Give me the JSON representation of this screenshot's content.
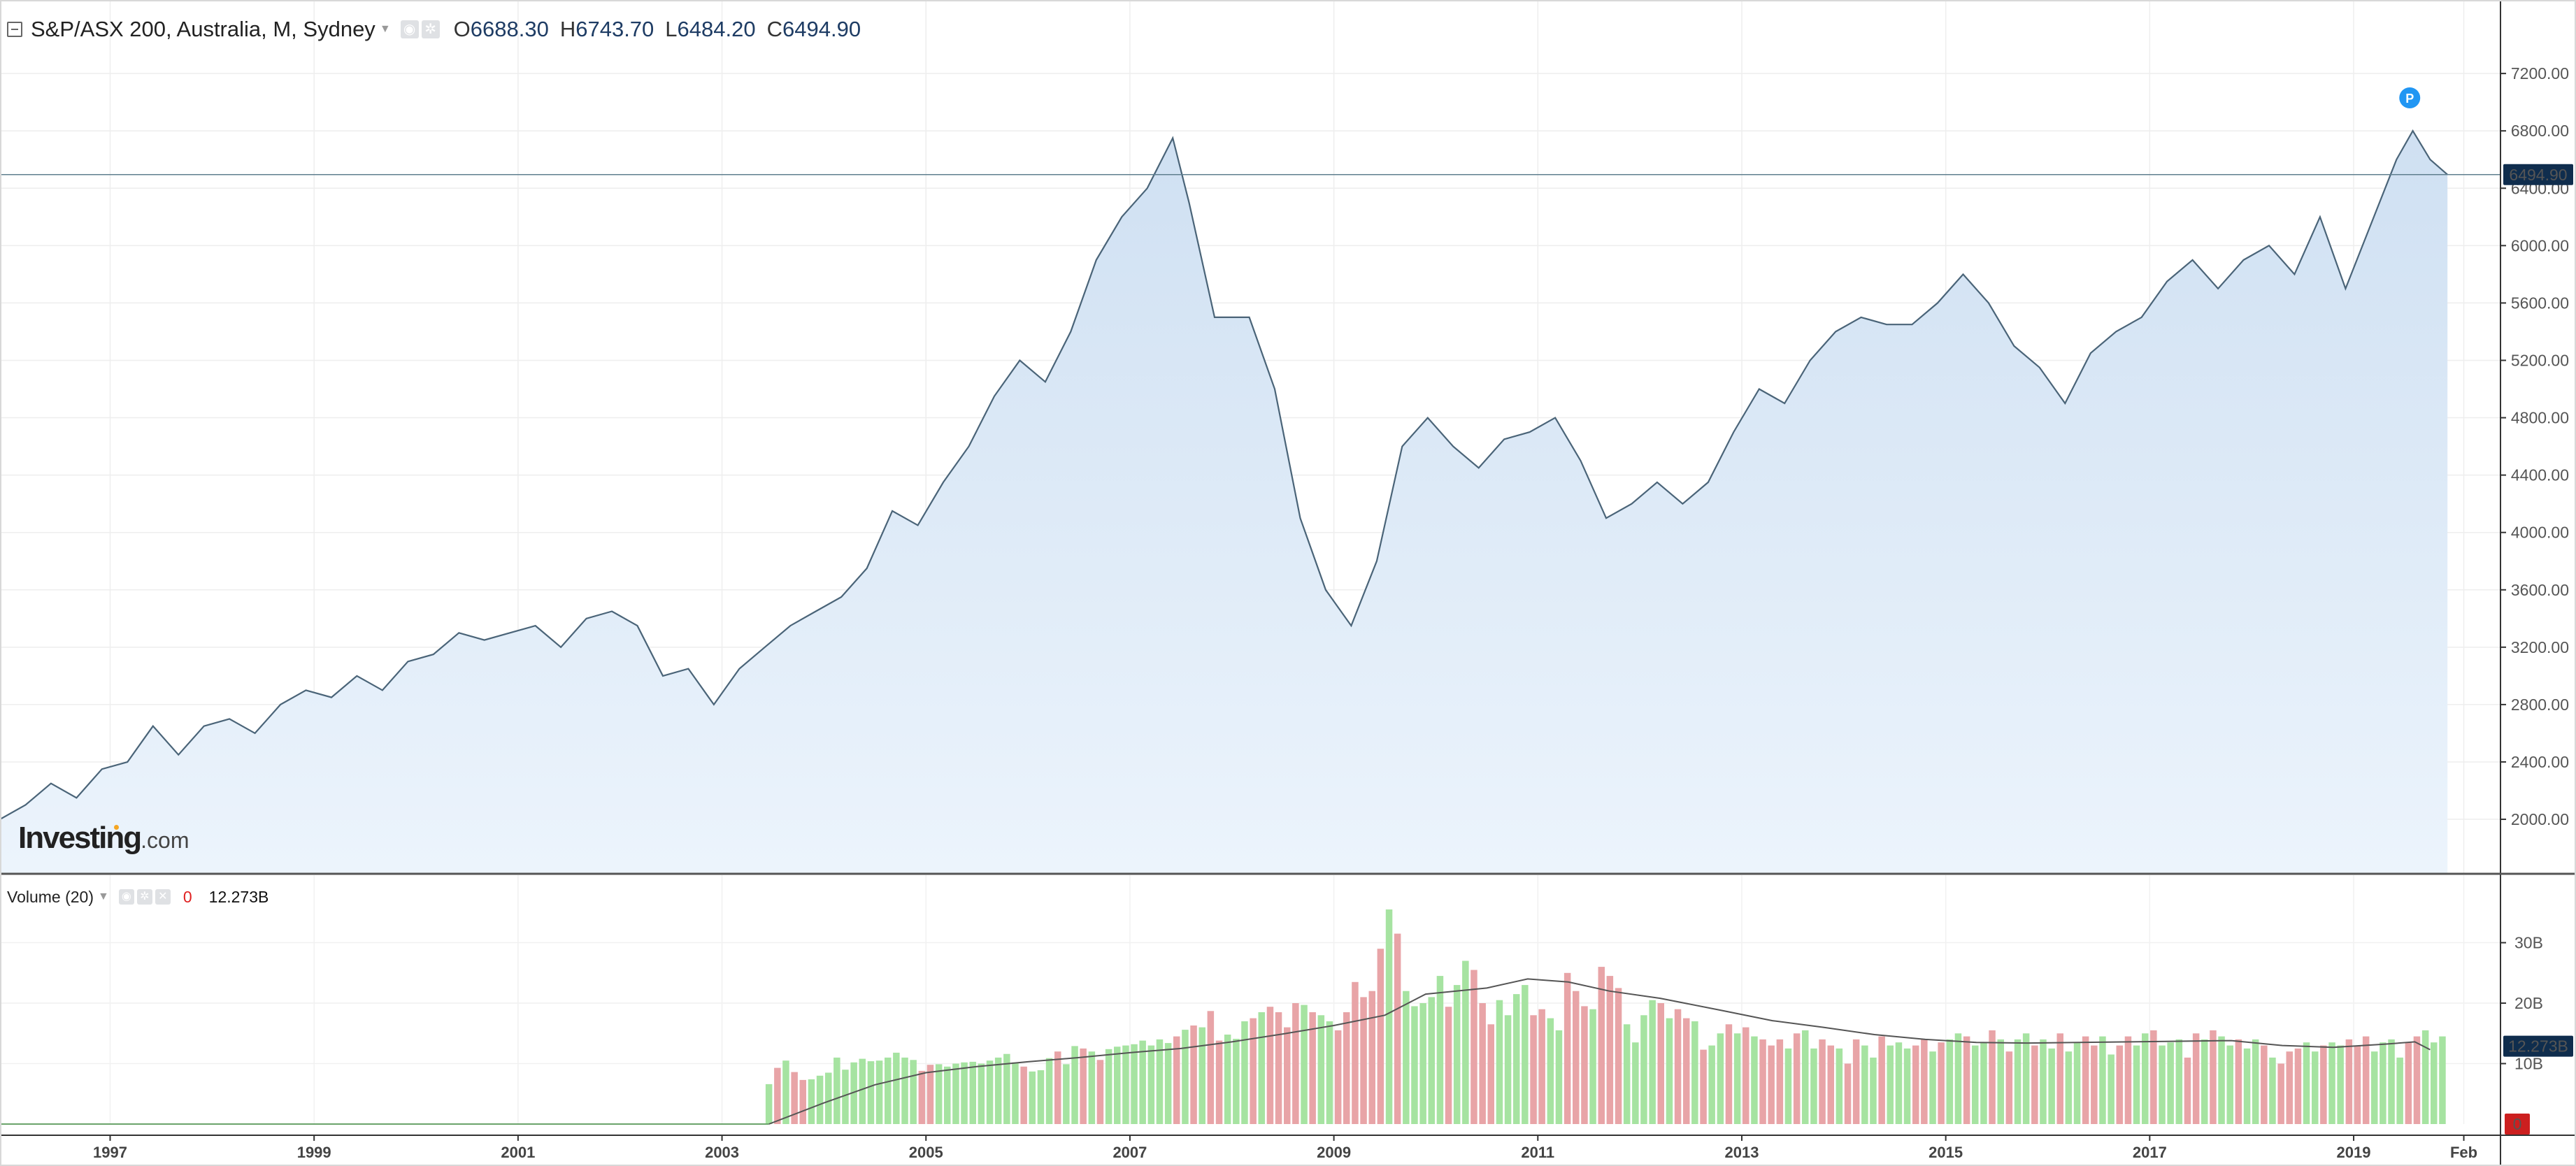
{
  "header": {
    "title": "S&P/ASX 200, Australia, M, Sydney",
    "ohlc": [
      {
        "key": "O",
        "value": "6688.30"
      },
      {
        "key": "H",
        "value": "6743.70"
      },
      {
        "key": "L",
        "value": "6484.20"
      },
      {
        "key": "C",
        "value": "6494.90"
      }
    ]
  },
  "volume_panel": {
    "title": "Volume (20)",
    "value_a": "0",
    "value_b": "12.273B"
  },
  "price_badge": "6494.90",
  "volume_badge": "12.273B",
  "volume_zero_badge": "0",
  "marker_label": "P",
  "logo": {
    "brand": "Investing",
    "suffix": ".com"
  },
  "colors": {
    "line": "#4a6478",
    "area_top": "#cfe0f2",
    "area_bottom": "#ecf4fc",
    "up_bar": "#a6e3a1",
    "down_bar": "#e8a4a7",
    "ma_line": "#555555",
    "badge_bg": "#0f2d4d",
    "zero_badge_bg": "#cc1f1f",
    "marker": "#2196f3"
  },
  "chart_data": [
    {
      "type": "area",
      "title": "S&P/ASX 200, Australia, M, Sydney",
      "y_axis_side": "right",
      "ylim": [
        1620,
        7420
      ],
      "y_ticks": [
        "2000.00",
        "2400.00",
        "2800.00",
        "3200.00",
        "3600.00",
        "4000.00",
        "4400.00",
        "4800.00",
        "5200.00",
        "5600.00",
        "6000.00",
        "6400.00",
        "6800.00",
        "7200.00"
      ],
      "x_range": [
        1995.92,
        2020.33
      ],
      "x_ticks": [
        {
          "x": 1997,
          "label": "1997"
        },
        {
          "x": 1999,
          "label": "1999"
        },
        {
          "x": 2001,
          "label": "2001"
        },
        {
          "x": 2003,
          "label": "2003"
        },
        {
          "x": 2005,
          "label": "2005"
        },
        {
          "x": 2007,
          "label": "2007"
        },
        {
          "x": 2009,
          "label": "2009"
        },
        {
          "x": 2011,
          "label": "2011"
        },
        {
          "x": 2013,
          "label": "2013"
        },
        {
          "x": 2015,
          "label": "2015"
        },
        {
          "x": 2017,
          "label": "2017"
        },
        {
          "x": 2019,
          "label": "2019"
        },
        {
          "x": 2020.08,
          "label": "Feb"
        }
      ],
      "last_close": 6494.9,
      "marker": {
        "x": 2019.55,
        "y": 7030,
        "label": "P"
      },
      "series": [
        {
          "x": [
            1995.92,
            1996.17,
            1996.42,
            1996.67,
            1996.92,
            1997.17,
            1997.42,
            1997.67,
            1997.92,
            1998.17,
            1998.42,
            1998.67,
            1998.92,
            1999.17,
            1999.42,
            1999.67,
            1999.92,
            2000.17,
            2000.42,
            2000.67,
            2000.92,
            2001.17,
            2001.42,
            2001.67,
            2001.92,
            2002.17,
            2002.42,
            2002.67,
            2002.92,
            2003.17,
            2003.42,
            2003.67,
            2003.92,
            2004.17,
            2004.42,
            2004.67,
            2004.92,
            2005.17,
            2005.42,
            2005.67,
            2005.92,
            2006.17,
            2006.42,
            2006.67,
            2006.92,
            2007.17,
            2007.42,
            2007.58,
            2007.83,
            2008.17,
            2008.42,
            2008.67,
            2008.92,
            2009.17,
            2009.42,
            2009.67,
            2009.92,
            2010.17,
            2010.42,
            2010.67,
            2010.92,
            2011.17,
            2011.42,
            2011.67,
            2011.92,
            2012.17,
            2012.42,
            2012.67,
            2012.92,
            2013.17,
            2013.42,
            2013.67,
            2013.92,
            2014.17,
            2014.42,
            2014.67,
            2014.92,
            2015.17,
            2015.42,
            2015.67,
            2015.92,
            2016.17,
            2016.42,
            2016.67,
            2016.92,
            2017.17,
            2017.42,
            2017.67,
            2017.92,
            2018.17,
            2018.42,
            2018.67,
            2018.92,
            2019.17,
            2019.42,
            2019.58,
            2019.75,
            2019.92
          ],
          "y": [
            2000,
            2100,
            2250,
            2150,
            2350,
            2400,
            2650,
            2450,
            2650,
            2700,
            2600,
            2800,
            2900,
            2850,
            3000,
            2900,
            3100,
            3150,
            3300,
            3250,
            3300,
            3350,
            3200,
            3400,
            3450,
            3350,
            3000,
            3050,
            2800,
            3050,
            3200,
            3350,
            3450,
            3550,
            3750,
            4150,
            4050,
            4350,
            4600,
            4950,
            5200,
            5050,
            5400,
            5900,
            6200,
            6400,
            6750,
            6300,
            5500,
            5500,
            5000,
            4100,
            3600,
            3350,
            3800,
            4600,
            4800,
            4600,
            4450,
            4650,
            4700,
            4800,
            4500,
            4100,
            4200,
            4350,
            4200,
            4350,
            4700,
            5000,
            4900,
            5200,
            5400,
            5500,
            5450,
            5450,
            5600,
            5800,
            5600,
            5300,
            5150,
            4900,
            5250,
            5400,
            5500,
            5750,
            5900,
            5700,
            5900,
            6000,
            5800,
            6200,
            5700,
            6150,
            6600,
            6800,
            6600,
            6495
          ]
        }
      ]
    },
    {
      "type": "bar",
      "title": "Volume (20)",
      "y_axis_side": "right",
      "ylim": [
        0,
        37
      ],
      "y_unit": "B",
      "y_ticks": [
        {
          "v": 10,
          "label": "10B"
        },
        {
          "v": 20,
          "label": "20B"
        },
        {
          "v": 30,
          "label": "30B"
        }
      ],
      "series": [
        {
          "name": "Volume",
          "x_start": 2003.46,
          "x_step": 0.0833,
          "values": [
            6.6,
            9.3,
            10.5,
            8.6,
            7.3,
            7.4,
            8.0,
            8.5,
            11.0,
            9.0,
            10.2,
            10.8,
            10.4,
            10.5,
            11.0,
            11.8,
            11.0,
            10.6,
            8.8,
            9.8,
            9.9,
            9.5,
            10.0,
            10.2,
            10.3,
            10.0,
            10.5,
            11.0,
            11.6,
            10.2,
            9.5,
            8.7,
            8.9,
            10.9,
            12.0,
            9.9,
            12.9,
            12.5,
            12.0,
            10.6,
            12.4,
            12.8,
            13.0,
            13.2,
            13.8,
            13.0,
            14.0,
            13.4,
            14.5,
            15.6,
            16.3,
            16.0,
            18.7,
            13.8,
            14.8,
            14.1,
            17.0,
            17.5,
            18.5,
            19.4,
            18.5,
            16.0,
            20.0,
            19.7,
            18.5,
            18.0,
            17.0,
            15.5,
            18.5,
            23.5,
            21.0,
            22.0,
            29.0,
            35.5,
            31.5,
            22.0,
            19.5,
            20.0,
            21.0,
            24.5,
            19.4,
            23.0,
            27.0,
            25.5,
            20.0,
            16.5,
            20.5,
            18.0,
            21.5,
            23.0,
            18.0,
            19.0,
            17.5,
            15.5,
            25.0,
            22.0,
            19.5,
            19.0,
            26.0,
            24.5,
            22.5,
            16.5,
            13.5,
            18.0,
            20.5,
            20.0,
            17.5,
            19.0,
            17.5,
            17.0,
            12.3,
            13.0,
            15.0,
            16.5,
            15.0,
            16.0,
            14.5,
            14.0,
            13.0,
            14.0,
            12.5,
            15.0,
            15.5,
            12.5,
            14.0,
            13.0,
            12.5,
            10.0,
            14.0,
            13.0,
            11.0,
            14.5,
            13.0,
            13.5,
            12.5,
            13.0,
            14.0,
            12.0,
            13.5,
            14.0,
            15.0,
            14.5,
            13.0,
            13.5,
            15.5,
            14.0,
            12.0,
            14.0,
            15.0,
            13.0,
            14.0,
            12.5,
            15.0,
            12.0,
            13.5,
            14.5,
            13.0,
            14.5,
            11.5,
            13.0,
            14.5,
            13.0,
            15.0,
            15.5,
            13.0,
            13.5,
            14.0,
            11.0,
            15.0,
            14.0,
            15.5,
            14.5,
            13.0,
            14.0,
            12.5,
            14.0,
            13.0,
            11.0,
            10.0,
            12.0,
            12.5,
            13.5,
            12.0,
            13.0,
            13.5,
            13.0,
            14.0,
            13.0,
            14.5,
            12.0,
            13.5,
            14.0,
            11.0,
            13.5,
            14.5,
            15.5,
            13.5,
            14.5
          ],
          "down": [
            false,
            true,
            false,
            true,
            true,
            false,
            false,
            false,
            false,
            false,
            false,
            false,
            false,
            false,
            false,
            false,
            false,
            false,
            true,
            true,
            false,
            false,
            false,
            false,
            false,
            false,
            false,
            false,
            false,
            false,
            true,
            false,
            false,
            false,
            true,
            false,
            false,
            true,
            false,
            true,
            false,
            false,
            false,
            false,
            false,
            false,
            false,
            false,
            true,
            false,
            true,
            false,
            true,
            true,
            false,
            false,
            false,
            true,
            false,
            true,
            true,
            true,
            true,
            false,
            true,
            false,
            false,
            true,
            true,
            true,
            true,
            true,
            true,
            false,
            true,
            false,
            false,
            false,
            false,
            false,
            true,
            false,
            false,
            true,
            true,
            true,
            false,
            false,
            false,
            false,
            true,
            true,
            false,
            false,
            true,
            true,
            true,
            false,
            true,
            true,
            true,
            false,
            false,
            false,
            false,
            true,
            false,
            true,
            true,
            false,
            true,
            false,
            false,
            true,
            false,
            true,
            false,
            true,
            true,
            true,
            false,
            true,
            false,
            false,
            true,
            true,
            false,
            true,
            true,
            false,
            false,
            true,
            false,
            false,
            false,
            true,
            true,
            false,
            true,
            false,
            false,
            true,
            false,
            false,
            true,
            false,
            true,
            false,
            false,
            true,
            false,
            false,
            true,
            false,
            false,
            true,
            true,
            false,
            false,
            true,
            true,
            false,
            false,
            true,
            false,
            false,
            false,
            true,
            true,
            false,
            true,
            false,
            false,
            true,
            false,
            false,
            true,
            false,
            true,
            true,
            true,
            false,
            false,
            true,
            false,
            false,
            true,
            true,
            true,
            false,
            false,
            false,
            false,
            true,
            true,
            false,
            false,
            false,
            true,
            false
          ]
        },
        {
          "name": "MA 20",
          "type": "line",
          "x": [
            2003.46,
            2004.0,
            2004.5,
            2005.0,
            2005.5,
            2006.0,
            2006.5,
            2007.0,
            2007.5,
            2008.0,
            2008.5,
            2009.0,
            2009.5,
            2009.9,
            2010.5,
            2010.9,
            2011.3,
            2011.7,
            2012.2,
            2012.8,
            2013.3,
            2013.8,
            2014.3,
            2014.8,
            2015.3,
            2015.8,
            2016.3,
            2016.8,
            2017.3,
            2017.8,
            2018.3,
            2018.8,
            2019.3,
            2019.6,
            2019.75
          ],
          "y": [
            0,
            3.5,
            6.5,
            8.5,
            9.5,
            10.3,
            11.0,
            11.8,
            12.5,
            13.6,
            14.9,
            16.3,
            18.0,
            21.5,
            22.5,
            24.0,
            23.5,
            22.0,
            20.8,
            18.8,
            17.1,
            16.0,
            14.8,
            14.0,
            13.5,
            13.4,
            13.5,
            13.6,
            13.7,
            13.8,
            13.0,
            12.7,
            13.2,
            13.6,
            12.3
          ]
        }
      ]
    }
  ]
}
